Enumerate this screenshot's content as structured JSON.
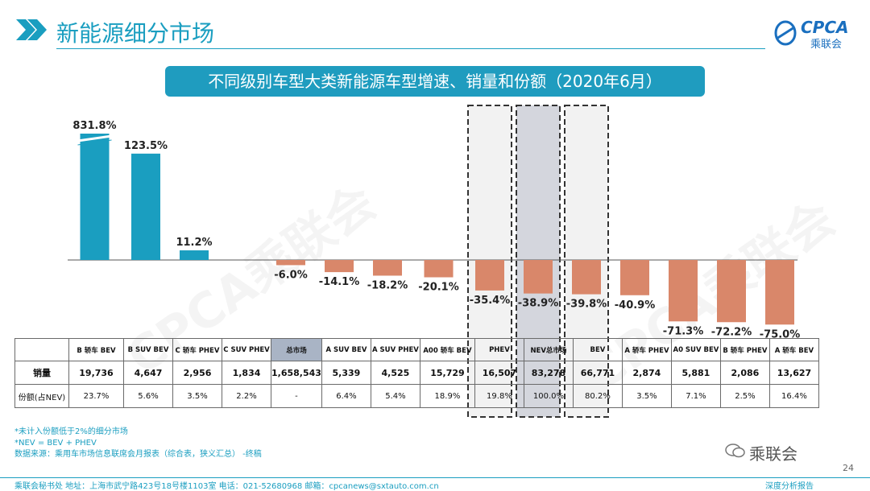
{
  "header": {
    "title": "新能源细分市场"
  },
  "logo": {
    "brand": "CPCA",
    "chinese": "乘联会"
  },
  "watermark": "CPCA乘联会",
  "chart_data": {
    "type": "bar",
    "title": "不同级别车型大类新能源车型增速、销量和份额（2020年6月）",
    "categories": [
      "B 轿车 BEV",
      "B SUV BEV",
      "C 轿车 PHEV",
      "C SUV PHEV",
      "总市场",
      "A SUV BEV",
      "A SUV PHEV",
      "A00 轿车 BEV",
      "PHEV",
      "NEV总市场",
      "BEV",
      "A 轿车 PHEV",
      "A0 SUV BEV",
      "B 轿车 PHEV",
      "A 轿车 BEV"
    ],
    "growth": [
      831.8,
      123.5,
      11.2,
      null,
      -6.0,
      -14.1,
      -18.2,
      -20.1,
      -35.4,
      -38.9,
      -39.8,
      -40.9,
      -71.3,
      -72.2,
      -75.0
    ],
    "growth_labels": [
      "831.8%",
      "123.5%",
      "11.2%",
      "",
      "-6.0%",
      "-14.1%",
      "-18.2%",
      "-20.1%",
      "-35.4%",
      "-38.9%",
      "-39.8%",
      "-40.9%",
      "-71.3%",
      "-72.2%",
      "-75.0%"
    ],
    "axis_break_at": 130,
    "positive_color": "#1a9ec0",
    "negative_color": "#d9876a",
    "highlight_color": "#d4d6dd",
    "highlighted": [
      "PHEV",
      "NEV总市场",
      "BEV"
    ],
    "table": {
      "row_labels": [
        "销量",
        "份额(占NEV)"
      ],
      "sales": [
        "19,736",
        "4,647",
        "2,956",
        "1,834",
        "1,658,543",
        "5,339",
        "4,525",
        "15,729",
        "16,507",
        "83,278",
        "66,771",
        "2,874",
        "5,881",
        "2,086",
        "13,627"
      ],
      "share": [
        "23.7%",
        "5.6%",
        "3.5%",
        "2.2%",
        "-",
        "6.4%",
        "5.4%",
        "18.9%",
        "19.8%",
        "100.0%",
        "80.2%",
        "3.5%",
        "7.1%",
        "2.5%",
        "16.4%"
      ]
    }
  },
  "notes": [
    "*未计入份额低于2%的细分市场",
    "*NEV = BEV + PHEV",
    "数据来源：乘用车市场信息联席会月报表（综合表，狭义汇总）  -终稿"
  ],
  "wechat_label": "乘联会",
  "page_number": "24",
  "footer": {
    "text": "乘联会秘书处   地址：上海市武宁路423号18号楼1103室   电话：021-52680968   邮箱：cpcanews@sxtauto.com.cn",
    "report": "深度分析报告"
  }
}
